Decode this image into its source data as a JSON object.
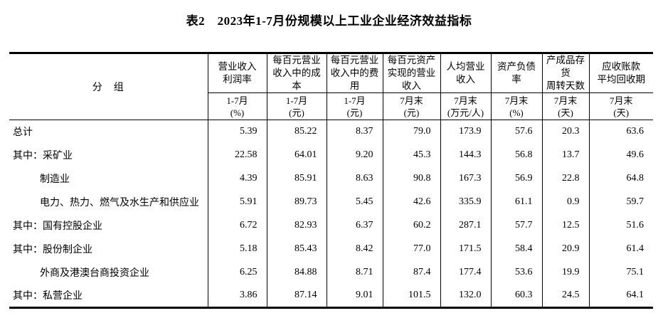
{
  "page": {
    "title": "表2　2023年1-7月份规模以上工业企业经济效益指标"
  },
  "table": {
    "group_header": "分　组",
    "columns": [
      {
        "title": "营业收入\n利润率",
        "period": "1-7月\n(%)"
      },
      {
        "title": "每百元营业\n收入中的成\n本",
        "period": "1-7月\n(元)"
      },
      {
        "title": "每百元营业\n收入中的费\n用",
        "period": "1-7月\n(元)"
      },
      {
        "title": "每百元资产\n实现的营业\n收入",
        "period": "7月末\n(元)"
      },
      {
        "title": "人均营业\n收入",
        "period": "7月末\n(万元/人)"
      },
      {
        "title": "资产负债\n率",
        "period": "7月末\n(%)"
      },
      {
        "title": "产成品存\n货\n周转天数",
        "period": "7月末\n(天)"
      },
      {
        "title": "应收账款\n平均回收期",
        "period": "7月末\n(天)"
      }
    ],
    "rows": [
      {
        "label": "总计",
        "indent": false,
        "values": [
          "5.39",
          "85.22",
          "8.37",
          "79.0",
          "173.9",
          "57.6",
          "20.3",
          "63.6"
        ]
      },
      {
        "label": "其中：采矿业",
        "indent": false,
        "values": [
          "22.58",
          "64.01",
          "9.20",
          "45.3",
          "144.3",
          "56.8",
          "13.7",
          "49.6"
        ]
      },
      {
        "label": "制造业",
        "indent": true,
        "values": [
          "4.39",
          "85.91",
          "8.63",
          "90.8",
          "167.3",
          "56.9",
          "22.8",
          "64.8"
        ]
      },
      {
        "label": "电力、热力、燃气及水生产和供应业",
        "indent": true,
        "values": [
          "5.91",
          "89.73",
          "5.45",
          "42.6",
          "335.9",
          "61.1",
          "0.9",
          "59.7"
        ]
      },
      {
        "label": "其中：国有控股企业",
        "indent": false,
        "values": [
          "6.72",
          "82.93",
          "6.37",
          "60.2",
          "287.1",
          "57.7",
          "12.5",
          "51.6"
        ]
      },
      {
        "label": "其中：股份制企业",
        "indent": false,
        "values": [
          "5.18",
          "85.43",
          "8.42",
          "77.0",
          "171.5",
          "58.4",
          "20.9",
          "61.4"
        ]
      },
      {
        "label": "外商及港澳台商投资企业",
        "indent": true,
        "values": [
          "6.25",
          "84.88",
          "8.71",
          "87.4",
          "177.4",
          "53.6",
          "19.9",
          "75.1"
        ]
      },
      {
        "label": "其中：私营企业",
        "indent": false,
        "values": [
          "3.86",
          "87.14",
          "9.01",
          "101.5",
          "132.0",
          "60.3",
          "24.5",
          "64.1"
        ]
      }
    ],
    "colors": {
      "border": "#000000",
      "text": "#000000",
      "background": "#ffffff"
    }
  }
}
